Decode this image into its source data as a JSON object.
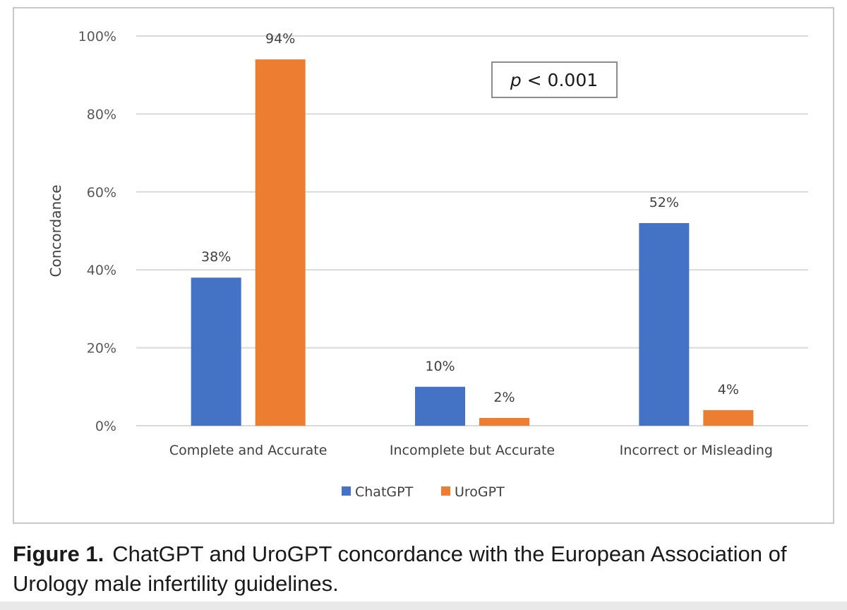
{
  "chart_data": {
    "type": "bar",
    "title": "",
    "xlabel": "",
    "ylabel": "Concordance",
    "ylim": [
      0,
      100
    ],
    "yticks": [
      "0%",
      "20%",
      "40%",
      "60%",
      "80%",
      "100%"
    ],
    "ytick_values": [
      0,
      20,
      40,
      60,
      80,
      100
    ],
    "categories": [
      "Complete and Accurate",
      "Incomplete but Accurate",
      "Incorrect or Misleading"
    ],
    "series": [
      {
        "name": "ChatGPT",
        "color": "#4472c4",
        "values": [
          38,
          10,
          52
        ],
        "labels": [
          "38%",
          "10%",
          "52%"
        ]
      },
      {
        "name": "UroGPT",
        "color": "#ed7d31",
        "values": [
          94,
          2,
          4
        ],
        "labels": [
          "94%",
          "2%",
          "4%"
        ]
      }
    ],
    "grid": true,
    "legend_position": "bottom-center",
    "annotation": {
      "p_symbol": "p",
      "p_rest": " < 0.001"
    }
  },
  "caption": {
    "label": "Figure 1.",
    "text": "ChatGPT and UroGPT concordance with the European Association of Urology male infertility guidelines."
  }
}
